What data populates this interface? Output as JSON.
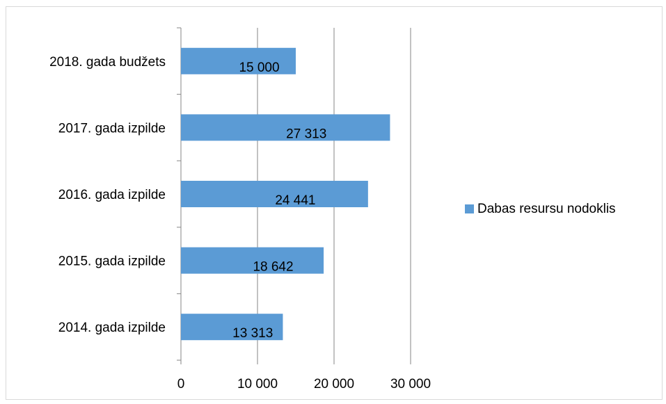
{
  "chart_data": {
    "type": "bar",
    "orientation": "horizontal",
    "categories": [
      "2014. gada izpilde",
      "2015. gada izpilde",
      "2016. gada izpilde",
      "2017. gada izpilde",
      "2018. gada budžets"
    ],
    "series": [
      {
        "name": "Dabas resursu nodoklis",
        "values": [
          13313,
          18642,
          24441,
          27313,
          15000
        ],
        "labels": [
          "13 313",
          "18 642",
          "24 441",
          "27 313",
          "15 000"
        ],
        "color": "#5b9bd5"
      }
    ],
    "xlim": [
      0,
      30000
    ],
    "x_ticks": [
      0,
      10000,
      20000,
      30000
    ],
    "x_tick_labels": [
      "0",
      "10 000",
      "20 000",
      "30 000"
    ],
    "grid": "vertical",
    "legend": "right",
    "gridline_color": "#868686"
  }
}
